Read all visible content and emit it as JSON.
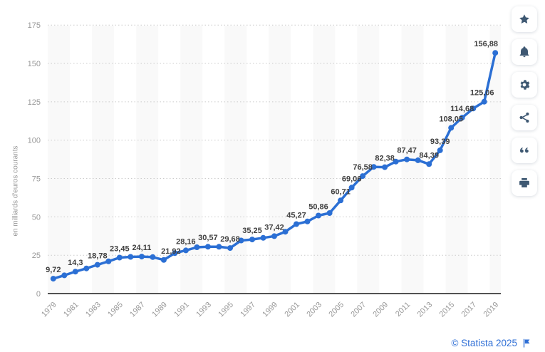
{
  "colors": {
    "accent_blue": "#2b6fd4",
    "icon_navy": "#3e5872",
    "footer_blue": "#2f6fd6",
    "band_gray": "#f9f9f9",
    "grid_gray": "#cccccc",
    "tick_gray": "#999999",
    "label_dark": "#404040",
    "axis_black": "#1a1a1a"
  },
  "chart_data": {
    "type": "line",
    "ylabel": "en milliards d'euros courants",
    "ylim": [
      0,
      175
    ],
    "yticks": [
      0,
      25,
      50,
      75,
      100,
      125,
      150,
      175
    ],
    "xticks": [
      1979,
      1981,
      1983,
      1985,
      1987,
      1989,
      1991,
      1993,
      1995,
      1997,
      1999,
      2001,
      2003,
      2005,
      2007,
      2009,
      2011,
      2013,
      2015,
      2017,
      2019
    ],
    "grid": "dotted-horizontal",
    "legend": "none",
    "series": [
      {
        "year": 1979,
        "value": 9.72,
        "label": "9,72"
      },
      {
        "year": 1980,
        "value": 11.9,
        "label": null
      },
      {
        "year": 1981,
        "value": 14.3,
        "label": "14,3"
      },
      {
        "year": 1982,
        "value": 16.4,
        "label": null
      },
      {
        "year": 1983,
        "value": 18.78,
        "label": "18,78"
      },
      {
        "year": 1984,
        "value": 21.0,
        "label": null
      },
      {
        "year": 1985,
        "value": 23.45,
        "label": "23,45"
      },
      {
        "year": 1986,
        "value": 23.9,
        "label": null
      },
      {
        "year": 1987,
        "value": 24.11,
        "label": "24,11"
      },
      {
        "year": 1988,
        "value": 23.8,
        "label": null
      },
      {
        "year": 1989,
        "value": 21.92,
        "label": "21,92"
      },
      {
        "year": 1990,
        "value": 26.4,
        "label": null
      },
      {
        "year": 1991,
        "value": 28.16,
        "label": "28,16"
      },
      {
        "year": 1992,
        "value": 30.2,
        "label": null
      },
      {
        "year": 1993,
        "value": 30.57,
        "label": "30,57"
      },
      {
        "year": 1994,
        "value": 30.5,
        "label": null
      },
      {
        "year": 1995,
        "value": 29.68,
        "label": "29,68"
      },
      {
        "year": 1996,
        "value": 34.6,
        "label": null
      },
      {
        "year": 1997,
        "value": 35.25,
        "label": "35,25"
      },
      {
        "year": 1998,
        "value": 36.3,
        "label": null
      },
      {
        "year": 1999,
        "value": 37.42,
        "label": "37,42"
      },
      {
        "year": 2000,
        "value": 40.3,
        "label": null
      },
      {
        "year": 2001,
        "value": 45.27,
        "label": "45,27"
      },
      {
        "year": 2002,
        "value": 47.0,
        "label": null
      },
      {
        "year": 2003,
        "value": 50.86,
        "label": "50,86"
      },
      {
        "year": 2004,
        "value": 52.5,
        "label": null
      },
      {
        "year": 2005,
        "value": 60.71,
        "label": "60,71"
      },
      {
        "year": 2006,
        "value": 69.06,
        "label": "69,06"
      },
      {
        "year": 2007,
        "value": 76.58,
        "label": "76,58"
      },
      {
        "year": 2008,
        "value": 82.6,
        "label": null
      },
      {
        "year": 2009,
        "value": 82.38,
        "label": "82,38"
      },
      {
        "year": 2010,
        "value": 86.0,
        "label": null
      },
      {
        "year": 2011,
        "value": 87.47,
        "label": "87,47"
      },
      {
        "year": 2012,
        "value": 86.9,
        "label": null
      },
      {
        "year": 2013,
        "value": 84.39,
        "label": "84,39"
      },
      {
        "year": 2014,
        "value": 93.39,
        "label": "93,39"
      },
      {
        "year": 2015,
        "value": 108.05,
        "label": "108,05"
      },
      {
        "year": 2016,
        "value": 114.68,
        "label": "114,68"
      },
      {
        "year": 2017,
        "value": 120.6,
        "label": null
      },
      {
        "year": 2018,
        "value": 125.06,
        "label": "125,06"
      },
      {
        "year": 2019,
        "value": 156.88,
        "label": "156,88"
      }
    ]
  },
  "action_bar": {
    "buttons": [
      {
        "name": "favorite",
        "icon": "star-icon"
      },
      {
        "name": "alerts",
        "icon": "bell-icon"
      },
      {
        "name": "settings",
        "icon": "gear-icon"
      },
      {
        "name": "share",
        "icon": "share-icon"
      },
      {
        "name": "cite",
        "icon": "quote-icon"
      },
      {
        "name": "print",
        "icon": "printer-icon"
      }
    ]
  },
  "footer": {
    "copyright": "© Statista 2025",
    "flag": "flag-icon"
  }
}
